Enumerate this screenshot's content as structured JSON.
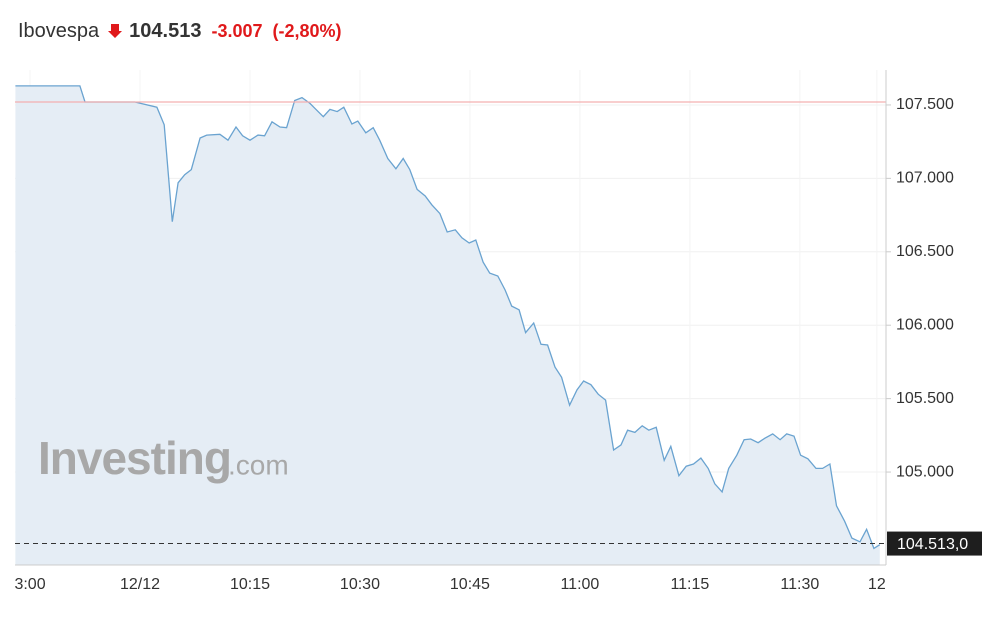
{
  "header": {
    "name": "Ibovespa",
    "price": "104.513",
    "change": "-3.007",
    "change_pct": "(-2,80%)"
  },
  "watermark": {
    "main": "Investing",
    "suffix": ".com"
  },
  "chart_data": {
    "type": "area",
    "xlim": [
      -17.05,
      101.75
    ],
    "ylim": [
      104367,
      107738
    ],
    "xticks": [
      {
        "value": -15,
        "label": "3:00"
      },
      {
        "value": 0,
        "label": "12/12"
      },
      {
        "value": 15,
        "label": "10:15"
      },
      {
        "value": 30,
        "label": "10:30"
      },
      {
        "value": 45,
        "label": "10:45"
      },
      {
        "value": 60,
        "label": "11:00"
      },
      {
        "value": 75,
        "label": "11:15"
      },
      {
        "value": 90,
        "label": "11:30"
      },
      {
        "value": 100.5,
        "label": "12"
      }
    ],
    "yticks": [
      {
        "value": 105000,
        "label": "105.000"
      },
      {
        "value": 105500,
        "label": "105.500"
      },
      {
        "value": 106000,
        "label": "106.000"
      },
      {
        "value": 106500,
        "label": "106.500"
      },
      {
        "value": 107000,
        "label": "107.000"
      },
      {
        "value": 107500,
        "label": "107.500"
      }
    ],
    "grid": true,
    "ref_line": {
      "value": 107520,
      "color": "#f4b0b0"
    },
    "last_label": {
      "value": 104513,
      "label": "104.513,0"
    },
    "series": [
      {
        "color": "#6aa3d0",
        "fill": "#e5edf5",
        "x": [
          -17.0,
          -8.2,
          -7.5,
          -0.7,
          2.3,
          3.3,
          4.4,
          5.2,
          6.1,
          7.0,
          8.2,
          9.1,
          10.9,
          12.0,
          13.1,
          14.0,
          15.0,
          16.1,
          17.0,
          18.0,
          19.1,
          20.0,
          21.1,
          22.1,
          23.2,
          24.0,
          25.0,
          25.9,
          26.9,
          27.8,
          28.9,
          29.7,
          30.8,
          31.8,
          32.7,
          33.8,
          34.9,
          35.9,
          36.8,
          37.8,
          38.9,
          39.8,
          40.9,
          41.9,
          43.0,
          43.9,
          44.9,
          45.8,
          46.8,
          47.7,
          48.8,
          49.8,
          50.7,
          51.7,
          52.6,
          53.7,
          54.7,
          55.6,
          56.6,
          57.5,
          58.6,
          59.6,
          60.5,
          61.5,
          62.5,
          63.5,
          64.6,
          65.6,
          66.5,
          67.5,
          68.5,
          69.4,
          70.4,
          71.5,
          72.4,
          73.5,
          74.5,
          75.5,
          76.5,
          77.5,
          78.4,
          79.4,
          80.3,
          81.4,
          82.4,
          83.3,
          84.3,
          85.2,
          86.3,
          87.3,
          88.2,
          89.2,
          90.1,
          91.1,
          92.2,
          93.1,
          94.1,
          95.0,
          96.1,
          97.1,
          98.2,
          99.1,
          100.1,
          100.9
        ],
        "values": [
          107630,
          107630,
          107520,
          107520,
          107485,
          107365,
          106705,
          106970,
          107025,
          107060,
          107275,
          107295,
          107300,
          107260,
          107350,
          107290,
          107260,
          107295,
          107290,
          107385,
          107350,
          107345,
          107530,
          107550,
          107510,
          107470,
          107420,
          107470,
          107455,
          107485,
          107370,
          107390,
          107310,
          107345,
          107260,
          107135,
          107065,
          107135,
          107060,
          106925,
          106880,
          106820,
          106760,
          106635,
          106650,
          106595,
          106560,
          106580,
          106430,
          106355,
          106335,
          106240,
          106130,
          106105,
          105950,
          106015,
          105870,
          105865,
          105715,
          105645,
          105455,
          105560,
          105620,
          105595,
          105530,
          105490,
          105150,
          105185,
          105285,
          105270,
          105315,
          105285,
          105305,
          105080,
          105175,
          104975,
          105040,
          105055,
          105095,
          105025,
          104920,
          104865,
          105025,
          105115,
          105220,
          105225,
          105200,
          105230,
          105260,
          105220,
          105260,
          105245,
          105115,
          105090,
          105025,
          105025,
          105055,
          104770,
          104665,
          104550,
          104525,
          104610,
          104480,
          104505
        ]
      }
    ]
  }
}
